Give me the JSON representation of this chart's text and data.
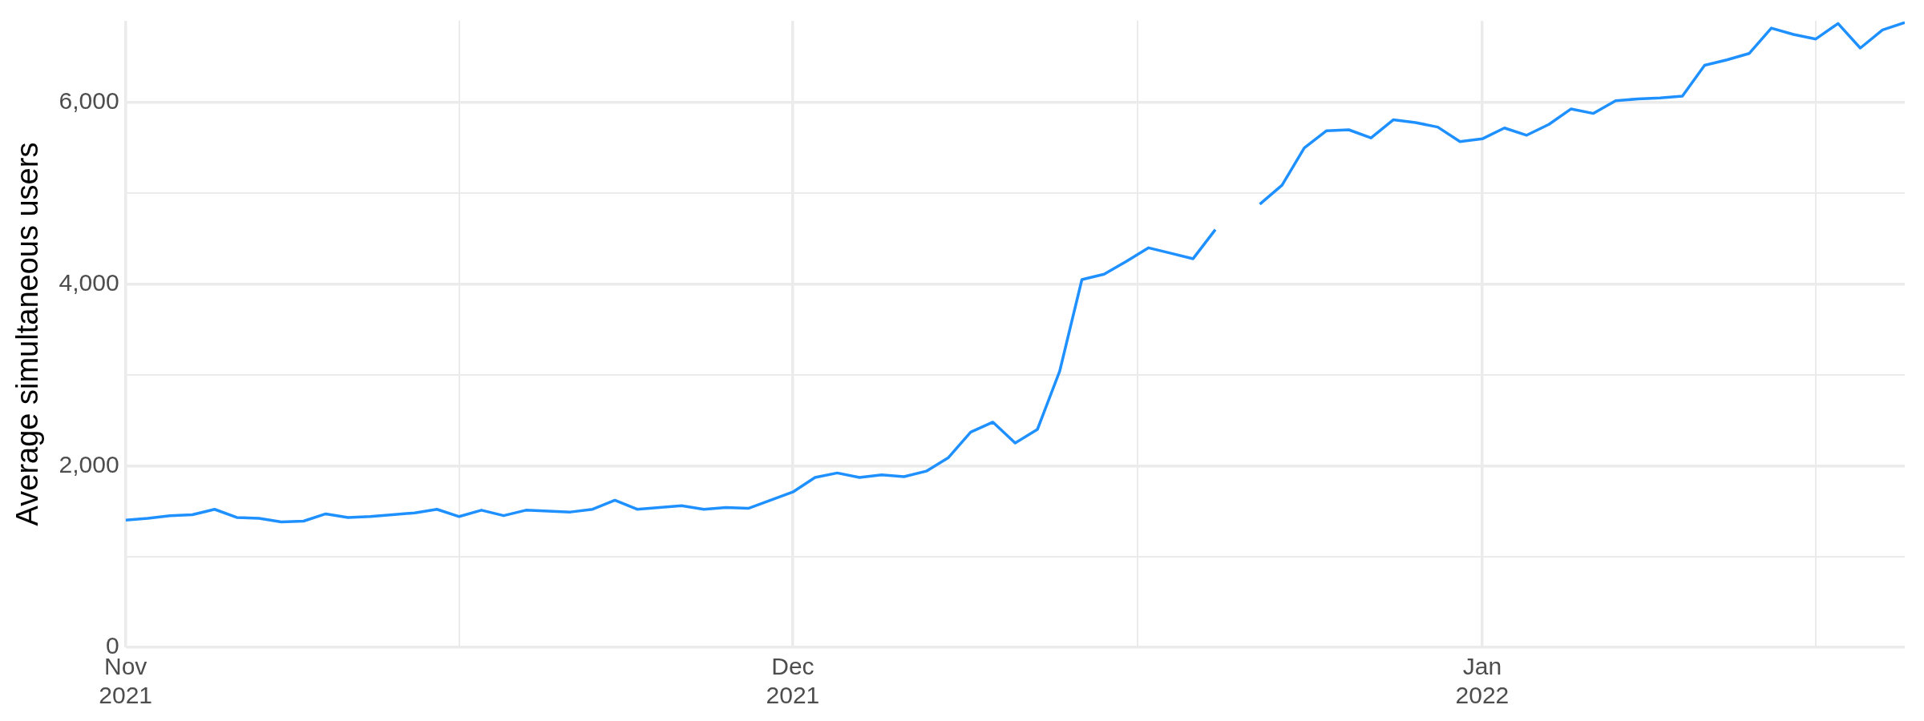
{
  "chart_data": {
    "type": "line",
    "ylabel": "Average simultaneous users",
    "x": [
      "2021-11-01",
      "2021-11-02",
      "2021-11-03",
      "2021-11-04",
      "2021-11-05",
      "2021-11-06",
      "2021-11-07",
      "2021-11-08",
      "2021-11-09",
      "2021-11-10",
      "2021-11-11",
      "2021-11-12",
      "2021-11-13",
      "2021-11-14",
      "2021-11-15",
      "2021-11-16",
      "2021-11-17",
      "2021-11-18",
      "2021-11-19",
      "2021-11-20",
      "2021-11-21",
      "2021-11-22",
      "2021-11-23",
      "2021-11-24",
      "2021-11-25",
      "2021-11-26",
      "2021-11-27",
      "2021-11-28",
      "2021-11-29",
      "2021-11-30",
      "2021-12-01",
      "2021-12-02",
      "2021-12-03",
      "2021-12-04",
      "2021-12-05",
      "2021-12-06",
      "2021-12-07",
      "2021-12-08",
      "2021-12-09",
      "2021-12-10",
      "2021-12-11",
      "2021-12-12",
      "2021-12-13",
      "2021-12-14",
      "2021-12-15",
      "2021-12-16",
      "2021-12-17",
      "2021-12-18",
      "2021-12-19",
      "2021-12-20",
      "2021-12-21",
      "2021-12-22",
      "2021-12-23",
      "2021-12-24",
      "2021-12-25",
      "2021-12-26",
      "2021-12-27",
      "2021-12-28",
      "2021-12-29",
      "2021-12-30",
      "2021-12-31",
      "2022-01-01",
      "2022-01-02",
      "2022-01-03",
      "2022-01-04",
      "2022-01-05",
      "2022-01-06",
      "2022-01-07",
      "2022-01-08",
      "2022-01-09",
      "2022-01-10",
      "2022-01-11",
      "2022-01-12",
      "2022-01-13",
      "2022-01-14",
      "2022-01-15",
      "2022-01-16",
      "2022-01-17",
      "2022-01-18",
      "2022-01-19",
      "2022-01-20"
    ],
    "series": [
      {
        "color": "#1e90ff",
        "values": [
          1400,
          1420,
          1450,
          1460,
          1520,
          1430,
          1420,
          1380,
          1390,
          1470,
          1430,
          1440,
          1460,
          1480,
          1520,
          1440,
          1510,
          1450,
          1510,
          1500,
          1490,
          1520,
          1620,
          1520,
          1540,
          1560,
          1520,
          1540,
          1530,
          1620,
          1710,
          1870,
          1920,
          1870,
          1900,
          1880,
          1940,
          2090,
          2370,
          2480,
          2250,
          2400,
          3040,
          4050,
          4110,
          4250,
          4400,
          4340,
          4280,
          4600,
          null,
          4880,
          5090,
          5500,
          5690,
          5700,
          5610,
          5810,
          5780,
          5730,
          5570,
          5600,
          5720,
          5640,
          5760,
          5930,
          5880,
          6020,
          6040,
          6050,
          6070,
          6410,
          6470,
          6540,
          6820,
          6750,
          6700,
          6870,
          6600,
          6800,
          6880
        ]
      }
    ],
    "xlim": [
      "2021-11-01",
      "2022-01-20"
    ],
    "xticks": [
      {
        "value": "2021-11-01",
        "label": "Nov 2021"
      },
      {
        "value": "2021-11-16",
        "label": null
      },
      {
        "value": "2021-12-01",
        "label": "Dec 2021"
      },
      {
        "value": "2021-12-16T12:00",
        "label": null
      },
      {
        "value": "2022-01-01",
        "label": "Jan 2022"
      },
      {
        "value": "2022-01-16",
        "label": null
      }
    ],
    "ylim": [
      0,
      6900
    ],
    "yticks": [
      0,
      {
        "value": 1000,
        "label": null
      },
      {
        "value": 2000,
        "label": "2,000"
      },
      {
        "value": 3000,
        "label": null
      },
      {
        "value": 4000,
        "label": "4,000"
      },
      {
        "value": 5000,
        "label": null
      },
      {
        "value": 6000,
        "label": "6,000"
      }
    ],
    "grid": true,
    "legend": false,
    "marker": "none",
    "line_style": "solid"
  }
}
